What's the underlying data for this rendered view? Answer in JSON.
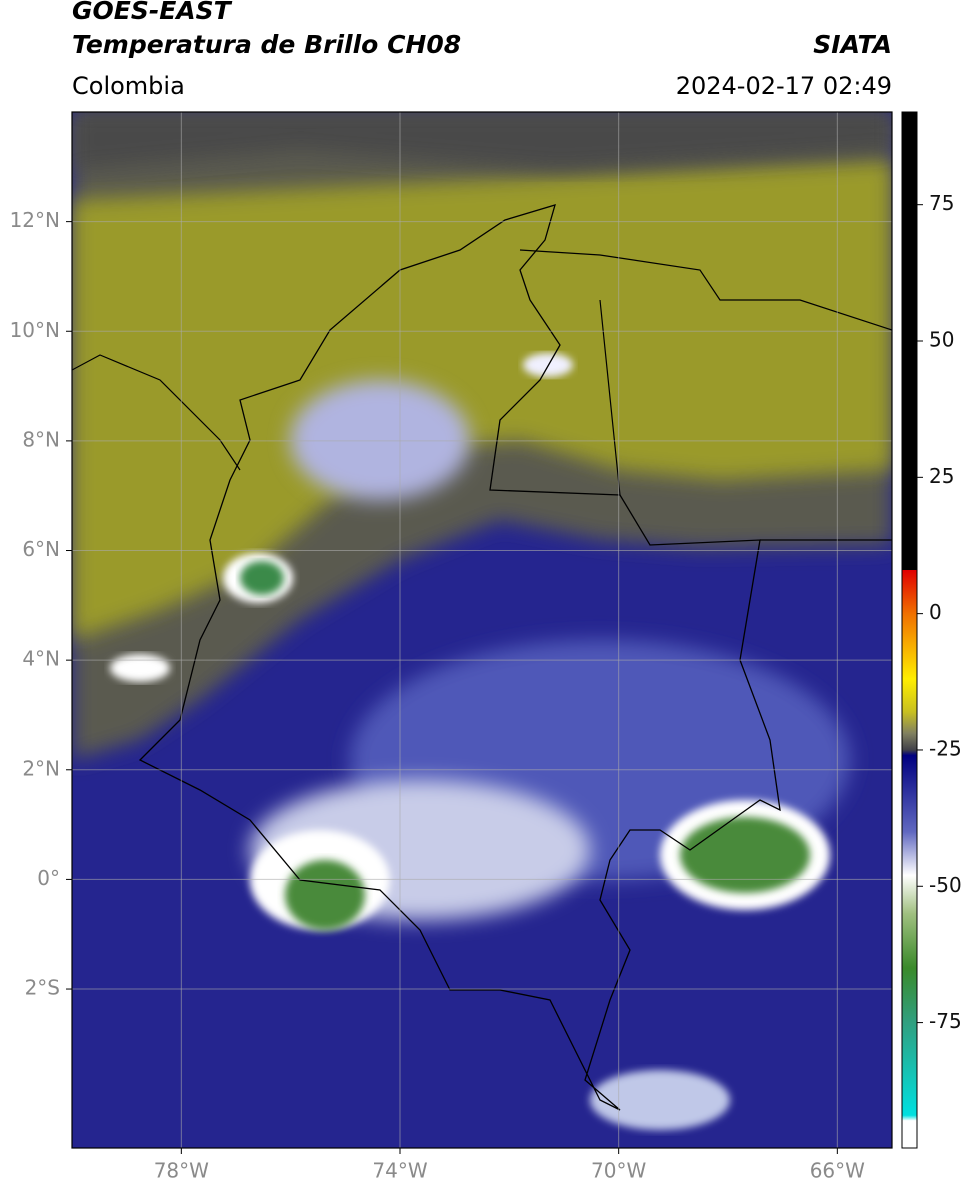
{
  "chart_data": {
    "type": "map",
    "title": "GOES-EAST",
    "subtitle": "Temperatura de Brillo CH08",
    "source": "SIATA",
    "region": "Colombia",
    "datetime": "2024-02-17 02:49",
    "xlim": [
      -80,
      -65
    ],
    "ylim": [
      -4.9,
      14
    ],
    "xticks": [
      {
        "value": -78,
        "label": "78°W"
      },
      {
        "value": -74,
        "label": "74°W"
      },
      {
        "value": -70,
        "label": "70°W"
      },
      {
        "value": -66,
        "label": "66°W"
      }
    ],
    "yticks": [
      {
        "value": -2,
        "label": "2°S"
      },
      {
        "value": 0,
        "label": "0°"
      },
      {
        "value": 2,
        "label": "2°N"
      },
      {
        "value": 4,
        "label": "4°N"
      },
      {
        "value": 6,
        "label": "6°N"
      },
      {
        "value": 8,
        "label": "8°N"
      },
      {
        "value": 10,
        "label": "10°N"
      },
      {
        "value": 12,
        "label": "12°N"
      }
    ],
    "grid": true,
    "colorbar": {
      "lim": [
        -98,
        92
      ],
      "ticks": [
        75,
        50,
        25,
        0,
        -25,
        -50,
        -75
      ],
      "stops": [
        {
          "value": 92,
          "color": "#000000"
        },
        {
          "value": 8,
          "color": "#000000"
        },
        {
          "value": 8,
          "color": "#e00000"
        },
        {
          "value": 0,
          "color": "#f07000"
        },
        {
          "value": -12,
          "color": "#ffee00"
        },
        {
          "value": -18,
          "color": "#c8c020"
        },
        {
          "value": -22,
          "color": "#808060"
        },
        {
          "value": -25,
          "color": "#404048"
        },
        {
          "value": -26,
          "color": "#000080"
        },
        {
          "value": -40,
          "color": "#6068c0"
        },
        {
          "value": -48,
          "color": "#ffffff"
        },
        {
          "value": -55,
          "color": "#a0c080"
        },
        {
          "value": -65,
          "color": "#3a8a2a"
        },
        {
          "value": -75,
          "color": "#30a080"
        },
        {
          "value": -92,
          "color": "#00e0e0"
        },
        {
          "value": -93,
          "color": "#ffffff"
        },
        {
          "value": -98,
          "color": "#ffffff"
        }
      ]
    }
  }
}
